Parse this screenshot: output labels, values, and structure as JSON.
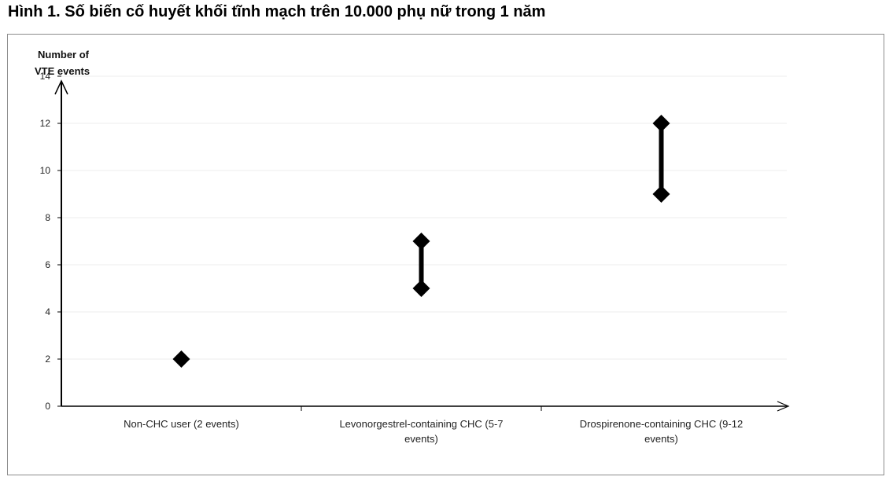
{
  "figure": {
    "title": "Hình 1. Số biến cố huyết khối tĩnh mạch trên 10.000 phụ nữ trong 1 năm"
  },
  "chart_data": {
    "type": "scatter",
    "title": "",
    "ylabel": "Number of VTE events",
    "ylabel_lines": [
      "Number of",
      "VTE events"
    ],
    "xlabel": "",
    "ylim": [
      0,
      14
    ],
    "yticks": [
      0,
      2,
      4,
      6,
      8,
      10,
      12,
      14
    ],
    "grid": true,
    "legend": "none",
    "categories": [
      {
        "label": "Non-CHC user (2 events)",
        "label_lines": [
          "Non-CHC user (2 events)"
        ],
        "low": 2,
        "high": 2
      },
      {
        "label": "Levonorgestrel-containing CHC (5-7 events)",
        "label_lines": [
          "Levonorgestrel-containing CHC (5-7",
          "events)"
        ],
        "low": 5,
        "high": 7
      },
      {
        "label": "Drospirenone-containing CHC (9-12 events)",
        "label_lines": [
          "Drospirenone-containing CHC (9-12",
          "events)"
        ],
        "low": 9,
        "high": 12
      }
    ],
    "colors": {
      "marker": "#000000",
      "gridline": "#ececec",
      "axis": "#000000"
    }
  }
}
